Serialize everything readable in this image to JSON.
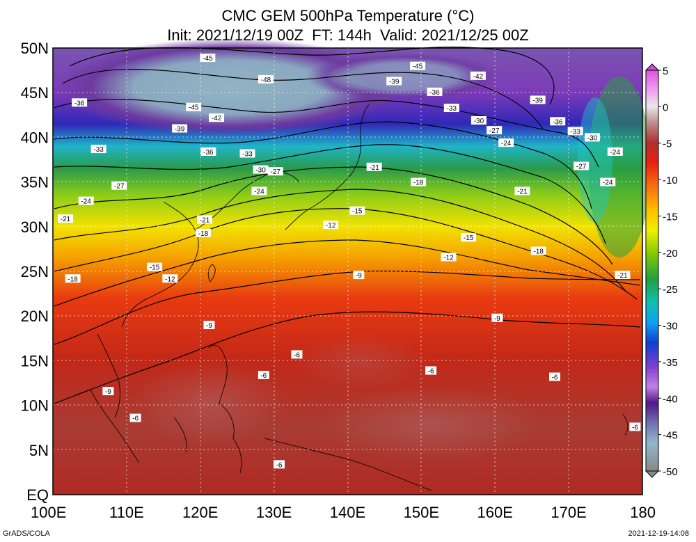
{
  "title": {
    "line1": "CMC GEM 500hPa Temperature (°C)",
    "line2": "Init: 2021/12/19 00Z  FT: 144h  Valid: 2021/12/25 00Z"
  },
  "axes": {
    "lat_labels": [
      "50N",
      "45N",
      "40N",
      "35N",
      "30N",
      "25N",
      "20N",
      "15N",
      "10N",
      "5N",
      "EQ"
    ],
    "lon_labels": [
      "100E",
      "110E",
      "120E",
      "130E",
      "140E",
      "150E",
      "160E",
      "170E",
      "180"
    ]
  },
  "colorbar": {
    "labels": [
      "5",
      "0",
      "-5",
      "-10",
      "-15",
      "-20",
      "-25",
      "-30",
      "-35",
      "-40",
      "-45",
      "-50"
    ],
    "colors": [
      "#a020c0",
      "#d050e0",
      "#f090f0",
      "#e8e8e8",
      "#c0a0a0",
      "#a05050",
      "#b03030",
      "#c82020",
      "#e02010",
      "#f04018",
      "#f87010",
      "#ffa000",
      "#ffd000",
      "#f0f000",
      "#a0d000",
      "#50b000",
      "#20a040",
      "#109060",
      "#10c0b0",
      "#10d8e0",
      "#10a0f0",
      "#1060e0",
      "#1030c0",
      "#6020c0",
      "#9040d0",
      "#c060e0",
      "#d090f0",
      "#5a1a8a",
      "#6040a0",
      "#8080b0",
      "#90b0c0",
      "#90a8a8",
      "#808890",
      "#909090"
    ]
  },
  "contour_labels": [
    {
      "text": "-45",
      "lon": 121,
      "lat": 48.9
    },
    {
      "text": "-48",
      "lon": 128.9,
      "lat": 46.5
    },
    {
      "text": "-45",
      "lon": 149.5,
      "lat": 48.0
    },
    {
      "text": "-42",
      "lon": 157.7,
      "lat": 46.9
    },
    {
      "text": "-39",
      "lon": 146.3,
      "lat": 46.3
    },
    {
      "text": "-36",
      "lon": 151.8,
      "lat": 45.1
    },
    {
      "text": "-36",
      "lon": 103.6,
      "lat": 43.9
    },
    {
      "text": "-45",
      "lon": 119.1,
      "lat": 43.4
    },
    {
      "text": "-33",
      "lon": 154.1,
      "lat": 43.3
    },
    {
      "text": "-42",
      "lon": 122.2,
      "lat": 42.2
    },
    {
      "text": "-39",
      "lon": 165.8,
      "lat": 44.2
    },
    {
      "text": "-30",
      "lon": 157.8,
      "lat": 41.9
    },
    {
      "text": "-36",
      "lon": 168.5,
      "lat": 41.8
    },
    {
      "text": "-39",
      "lon": 117.2,
      "lat": 41.0
    },
    {
      "text": "-27",
      "lon": 159.9,
      "lat": 40.8
    },
    {
      "text": "-33",
      "lon": 170.9,
      "lat": 40.7
    },
    {
      "text": "-30",
      "lon": 173.2,
      "lat": 40.0
    },
    {
      "text": "-24",
      "lon": 161.5,
      "lat": 39.4
    },
    {
      "text": "-33",
      "lon": 106.2,
      "lat": 38.7
    },
    {
      "text": "-36",
      "lon": 121.1,
      "lat": 38.4
    },
    {
      "text": "-33",
      "lon": 126.4,
      "lat": 38.2
    },
    {
      "text": "-24",
      "lon": 176.3,
      "lat": 38.4
    },
    {
      "text": "-21",
      "lon": 143.6,
      "lat": 36.7
    },
    {
      "text": "-30",
      "lon": 128.2,
      "lat": 36.4
    },
    {
      "text": "-27",
      "lon": 130.2,
      "lat": 36.2
    },
    {
      "text": "-27",
      "lon": 171.7,
      "lat": 36.8
    },
    {
      "text": "-18",
      "lon": 149.6,
      "lat": 35.0
    },
    {
      "text": "-24",
      "lon": 175.3,
      "lat": 35.0
    },
    {
      "text": "-27",
      "lon": 109.0,
      "lat": 34.6
    },
    {
      "text": "-24",
      "lon": 128.0,
      "lat": 34.0
    },
    {
      "text": "-21",
      "lon": 163.7,
      "lat": 34.0
    },
    {
      "text": "-24",
      "lon": 104.5,
      "lat": 32.9
    },
    {
      "text": "-15",
      "lon": 141.3,
      "lat": 31.8
    },
    {
      "text": "-21",
      "lon": 101.7,
      "lat": 30.9
    },
    {
      "text": "-21",
      "lon": 120.6,
      "lat": 30.8
    },
    {
      "text": "-12",
      "lon": 137.7,
      "lat": 30.2
    },
    {
      "text": "-18",
      "lon": 120.4,
      "lat": 29.3
    },
    {
      "text": "-15",
      "lon": 156.4,
      "lat": 28.8
    },
    {
      "text": "-18",
      "lon": 165.9,
      "lat": 27.3
    },
    {
      "text": "-12",
      "lon": 153.7,
      "lat": 26.6
    },
    {
      "text": "-15",
      "lon": 113.8,
      "lat": 25.5
    },
    {
      "text": "-9",
      "lon": 141.5,
      "lat": 24.6
    },
    {
      "text": "-12",
      "lon": 115.9,
      "lat": 24.2
    },
    {
      "text": "-18",
      "lon": 102.7,
      "lat": 24.2
    },
    {
      "text": "-21",
      "lon": 177.3,
      "lat": 24.6
    },
    {
      "text": "-9",
      "lon": 160.3,
      "lat": 19.8
    },
    {
      "text": "-9",
      "lon": 121.2,
      "lat": 19.0
    },
    {
      "text": "-6",
      "lon": 133.1,
      "lat": 15.7
    },
    {
      "text": "-6",
      "lon": 151.3,
      "lat": 13.9
    },
    {
      "text": "-6",
      "lon": 128.6,
      "lat": 13.4
    },
    {
      "text": "-6",
      "lon": 168.1,
      "lat": 13.2
    },
    {
      "text": "-9",
      "lon": 107.5,
      "lat": 11.6
    },
    {
      "text": "-6",
      "lon": 111.2,
      "lat": 8.6
    },
    {
      "text": "-6",
      "lon": 179.0,
      "lat": 7.6
    },
    {
      "text": "-6",
      "lon": 130.7,
      "lat": 3.4
    }
  ],
  "footer": {
    "credit": "GrADS/COLA",
    "timestamp": "2021-12-19-14:08"
  }
}
